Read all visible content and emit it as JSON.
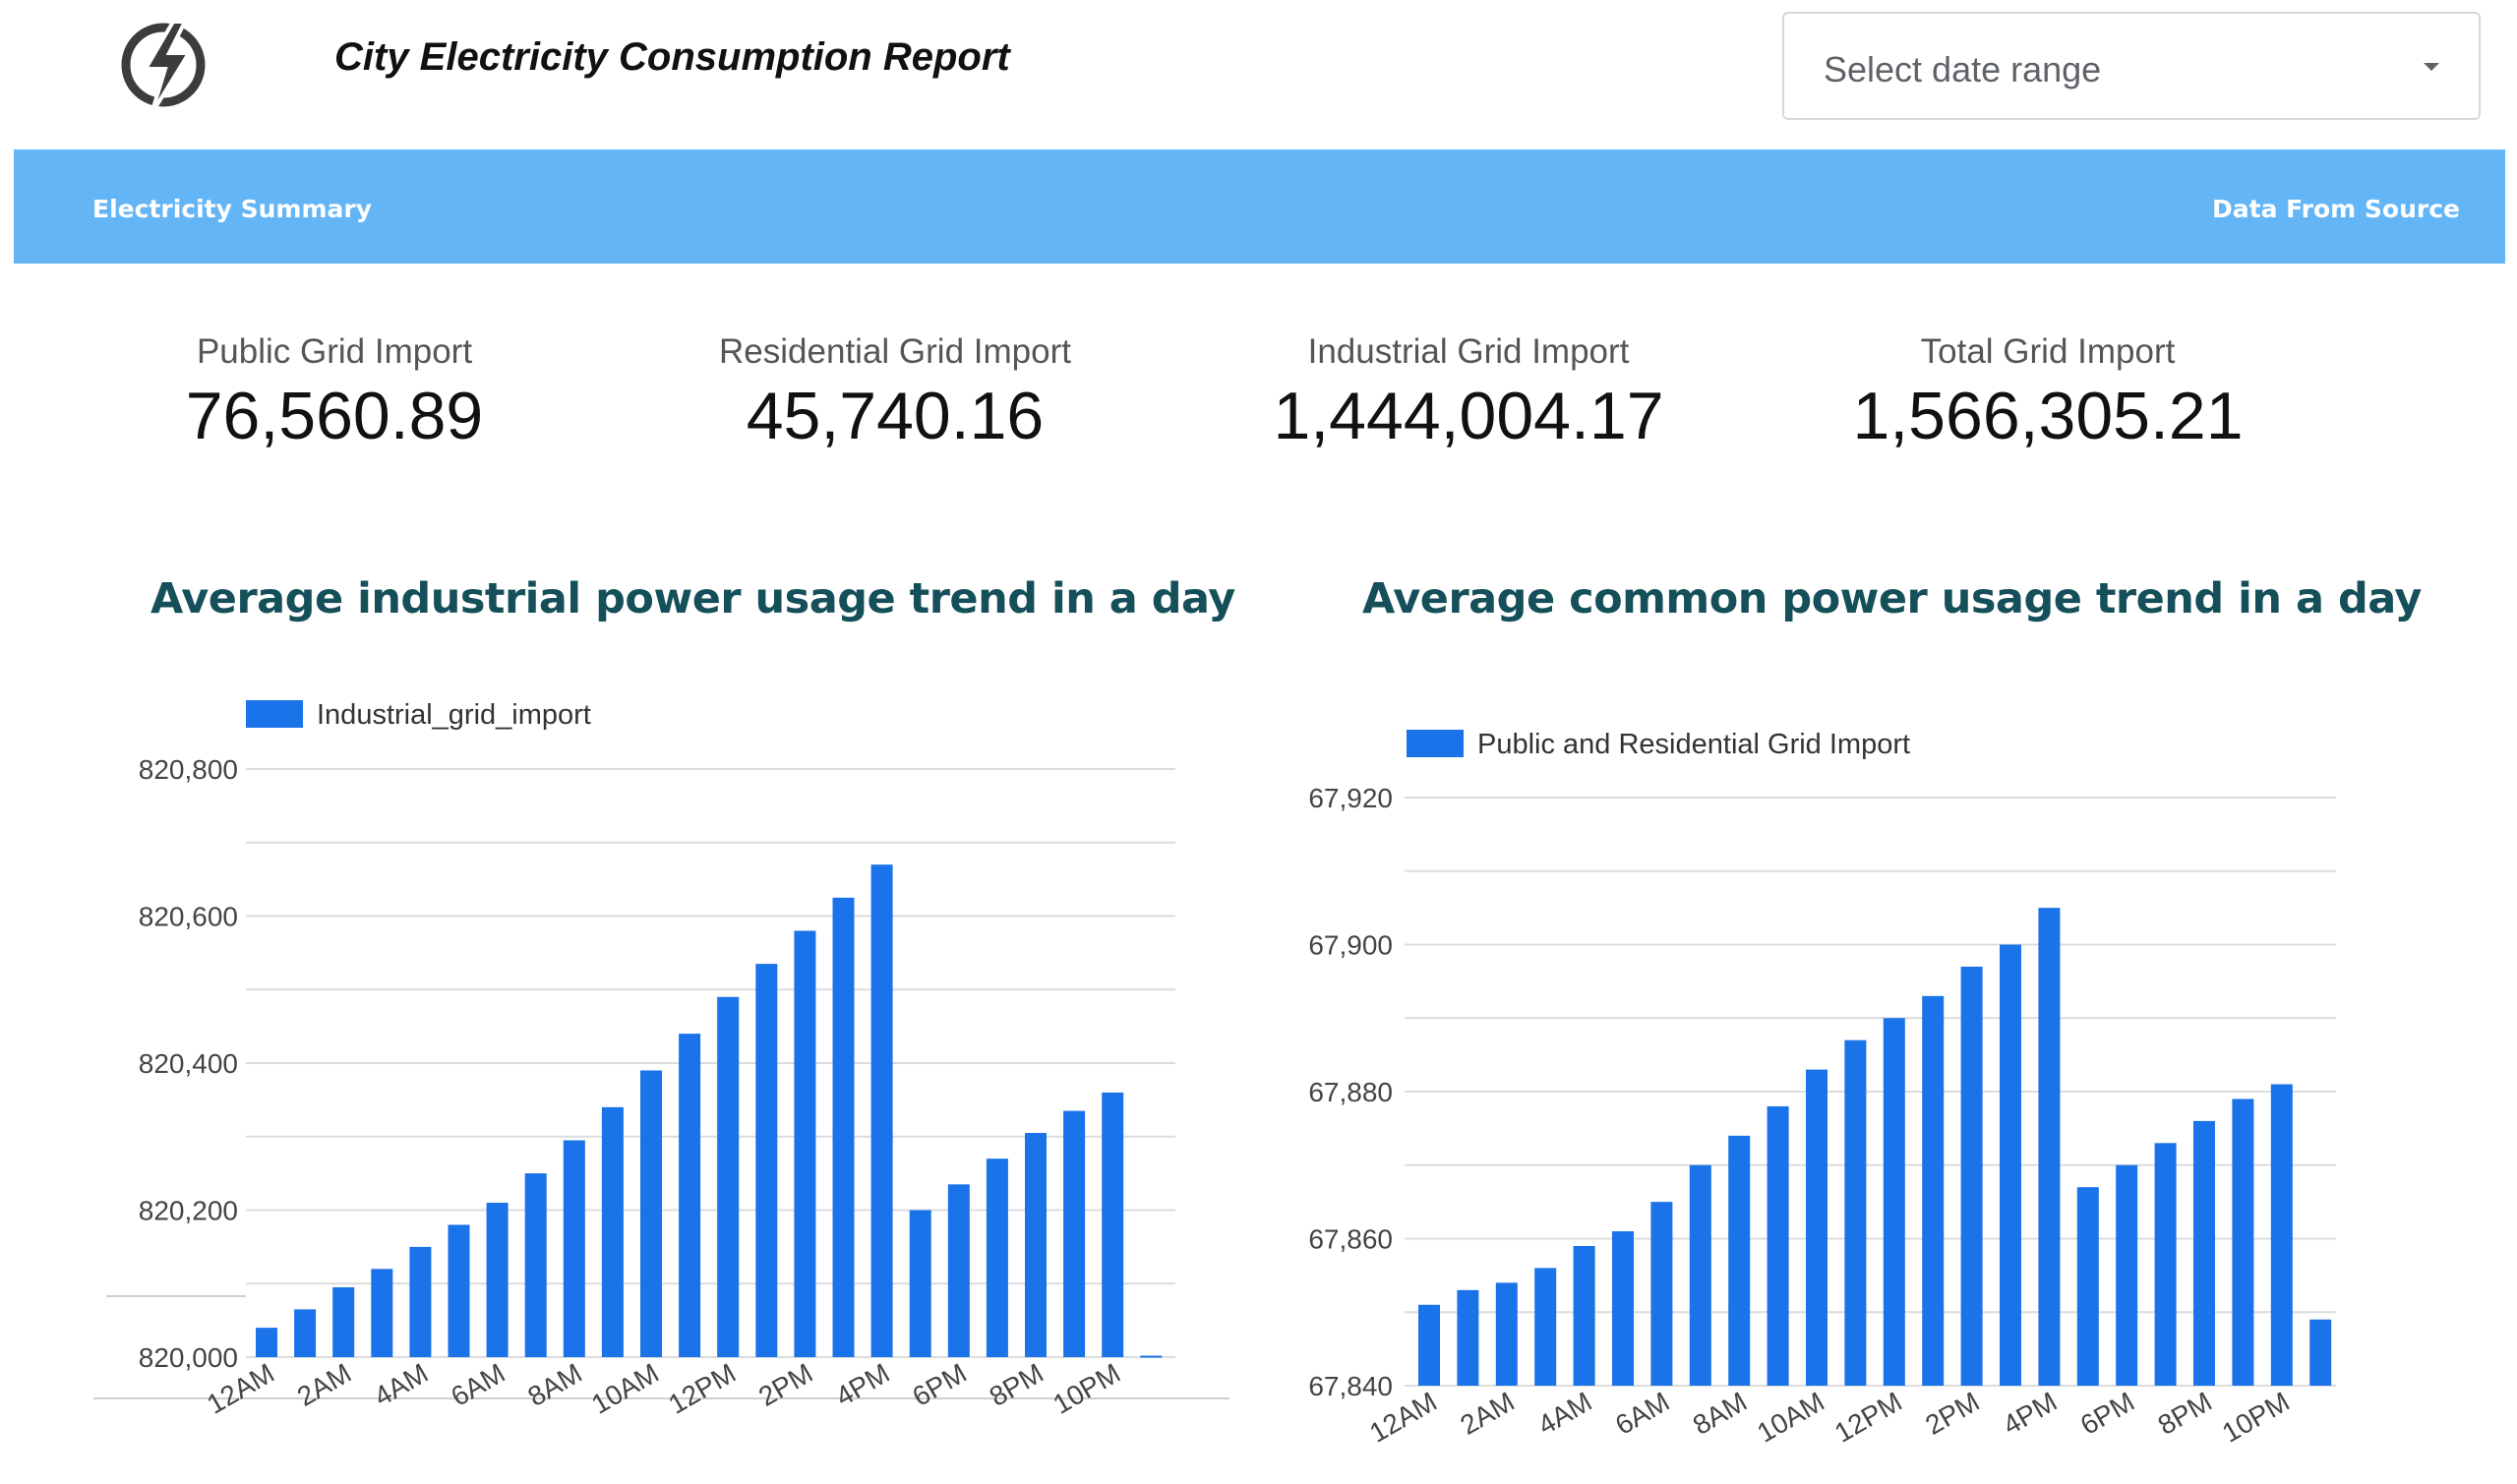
{
  "header": {
    "title": "City Electricity Consumption Report",
    "date_select_placeholder": "Select date range"
  },
  "nav": {
    "left": "Electricity Summary",
    "right": "Data From Source"
  },
  "colors": {
    "bar": "#1a73e8",
    "nav_bg": "#64b5f6",
    "title": "#15505a"
  },
  "kpis": [
    {
      "label": "Public Grid Import",
      "value": "76,560.89"
    },
    {
      "label": "Residential Grid Import",
      "value": "45,740.16"
    },
    {
      "label": "Industrial Grid Import",
      "value": "1,444,004.17"
    },
    {
      "label": "Total Grid Import",
      "value": "1,566,305.21"
    }
  ],
  "chart_data": [
    {
      "type": "bar",
      "title": "Average industrial power usage trend in a day",
      "legend": "top-left",
      "grid": true,
      "ylim": [
        820000,
        820800
      ],
      "yticks": [
        "820,000",
        "820,200",
        "820,400",
        "820,600",
        "820,800"
      ],
      "xticks": [
        "12AM",
        "2AM",
        "4AM",
        "6AM",
        "8AM",
        "10AM",
        "12PM",
        "2PM",
        "4PM",
        "6PM",
        "8PM",
        "10PM"
      ],
      "series": [
        {
          "name": "Industrial_grid_import",
          "values": [
            820040,
            820065,
            820095,
            820120,
            820150,
            820180,
            820210,
            820250,
            820295,
            820340,
            820390,
            820440,
            820490,
            820535,
            820580,
            820625,
            820670,
            820200,
            820235,
            820270,
            820305,
            820335,
            820360,
            820002
          ]
        }
      ]
    },
    {
      "type": "bar",
      "title": "Average common power usage trend in a day",
      "legend": "top-left",
      "grid": true,
      "ylim": [
        67840,
        67920
      ],
      "yticks": [
        "67,840",
        "67,860",
        "67,880",
        "67,900",
        "67,920"
      ],
      "xticks": [
        "12AM",
        "2AM",
        "4AM",
        "6AM",
        "8AM",
        "10AM",
        "12PM",
        "2PM",
        "4PM",
        "6PM",
        "8PM",
        "10PM"
      ],
      "series": [
        {
          "name": "Public and Residential Grid Import",
          "values": [
            67851,
            67853,
            67854,
            67856,
            67859,
            67861,
            67865,
            67870,
            67874,
            67878,
            67883,
            67887,
            67890,
            67893,
            67897,
            67900,
            67905,
            67867,
            67870,
            67873,
            67876,
            67879,
            67881,
            67849
          ]
        }
      ]
    }
  ]
}
